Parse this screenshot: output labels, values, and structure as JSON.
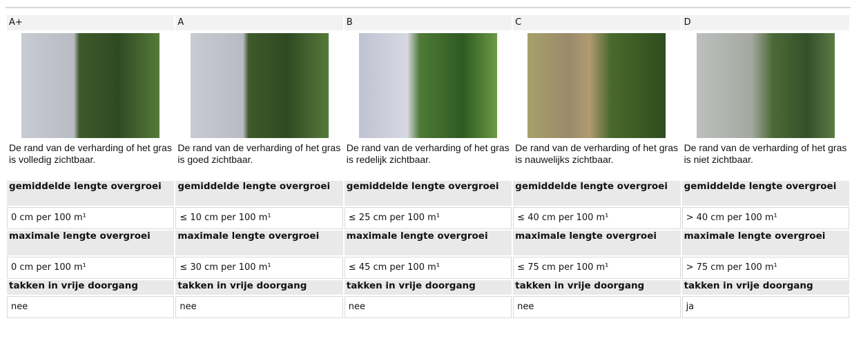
{
  "table": {
    "grades": [
      "A+",
      "A",
      "B",
      "C",
      "D"
    ],
    "descriptions": [
      "De rand van de verharding of het gras is volledig zichtbaar.",
      "De rand van de verharding of het gras is goed zichtbaar.",
      "De rand van de verharding of het gras is redelijk zichtbaar.",
      "De rand van de verharding of het gras is nauwelijks zichtbaar.",
      "De rand van de verharding of het gras is niet zichtbaar."
    ],
    "criteria": [
      {
        "label": "gemiddelde lengte overgroei",
        "values": [
          "0 cm per 100 m¹",
          "≤ 10 cm per 100 m¹",
          "≤ 25 cm per 100 m¹",
          "≤ 40 cm per 100 m¹",
          "> 40 cm per 100 m¹"
        ]
      },
      {
        "label": "maximale lengte overgroei",
        "values": [
          "0 cm per 100 m¹",
          "≤ 30 cm per 100 m¹",
          "≤ 45 cm per 100 m¹",
          "≤ 75 cm per 100 m¹",
          "> 75 cm per 100 m¹"
        ]
      },
      {
        "label": "takken in vrije doorgang",
        "values": [
          "nee",
          "nee",
          "nee",
          "nee",
          "ja"
        ]
      }
    ]
  }
}
